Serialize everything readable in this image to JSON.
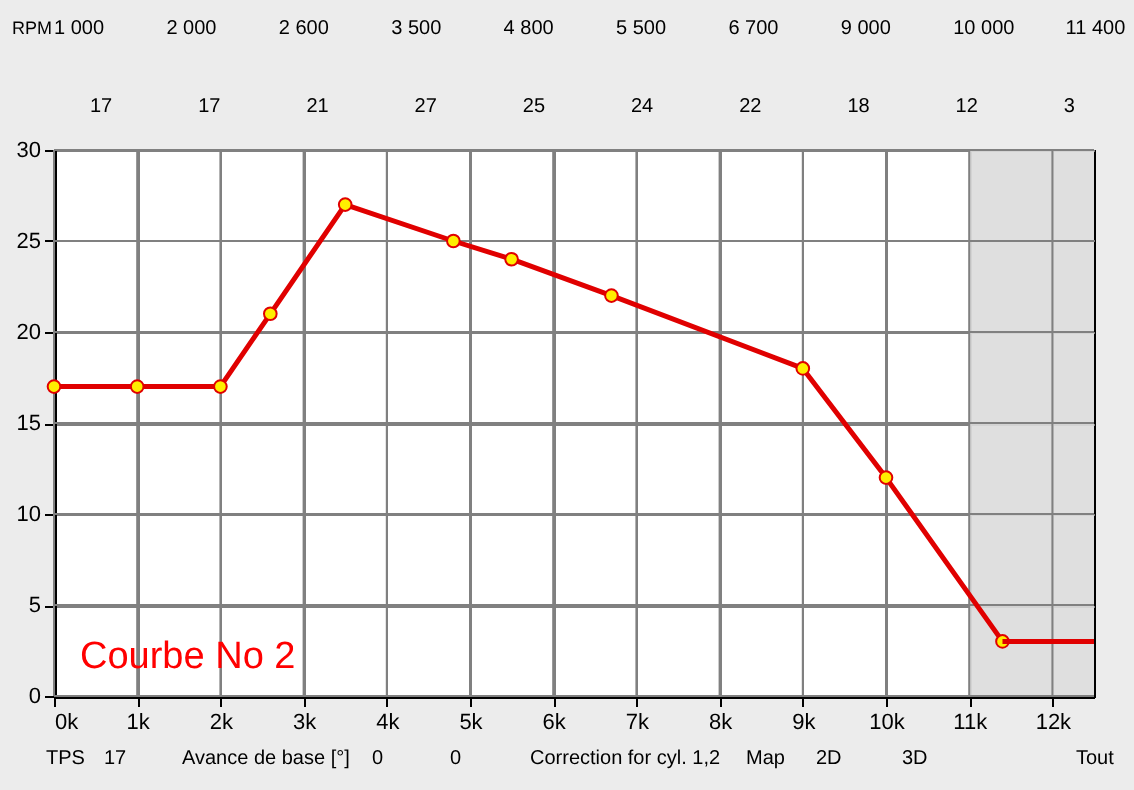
{
  "chart_data": {
    "type": "line",
    "x": [
      0,
      1000,
      2000,
      2600,
      3500,
      4800,
      5500,
      6700,
      9000,
      10000,
      11400
    ],
    "series": [
      {
        "color": "#e00000",
        "values": [
          17,
          17,
          17,
          21,
          27,
          25,
          24,
          22,
          18,
          12,
          3
        ],
        "marker": "circle"
      },
      {
        "color": "#e00000",
        "x": [
          11400,
          12500
        ],
        "values": [
          3,
          3
        ],
        "marker": "none"
      }
    ],
    "xlim": [
      0,
      12500
    ],
    "xticks": [
      {
        "value": 0,
        "label": "0k"
      },
      {
        "value": 1000,
        "label": "1k"
      },
      {
        "value": 2000,
        "label": "2k"
      },
      {
        "value": 3000,
        "label": "3k"
      },
      {
        "value": 4000,
        "label": "4k"
      },
      {
        "value": 5000,
        "label": "5k"
      },
      {
        "value": 6000,
        "label": "6k"
      },
      {
        "value": 7000,
        "label": "7k"
      },
      {
        "value": 8000,
        "label": "8k"
      },
      {
        "value": 9000,
        "label": "9k"
      },
      {
        "value": 10000,
        "label": "10k"
      },
      {
        "value": 11000,
        "label": "11k"
      },
      {
        "value": 12000,
        "label": "12k"
      }
    ],
    "ylim": [
      0,
      30
    ],
    "yticks": [
      0,
      5,
      10,
      15,
      20,
      25,
      30
    ],
    "grid": true,
    "line_style": "solid",
    "bands": [
      {
        "axis": "x",
        "from": 11000,
        "to": 12500,
        "color": "#dcdcdc"
      }
    ],
    "annotations": [
      "Courbe No 2",
      "RPM",
      "1 000",
      "2 000",
      "2 600",
      "3 500",
      "4 800",
      "5 500",
      "6 700",
      "9 000",
      "10 000",
      "11 400",
      "17",
      "17",
      "21",
      "27",
      "25",
      "24",
      "22",
      "18",
      "12",
      "3",
      "TPS",
      "17",
      "Avance de base [°]",
      "0",
      "0",
      "Correction for cyl. 1,2",
      "Map",
      "2D",
      "3D",
      "Tout"
    ]
  }
}
